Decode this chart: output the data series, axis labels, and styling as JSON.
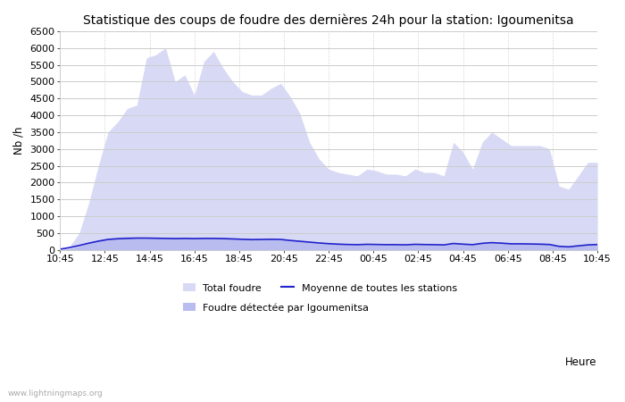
{
  "title": "Statistique des coups de foudre des dernières 24h pour la station: Igoumenitsa",
  "xlabel": "Heure",
  "ylabel": "Nb /h",
  "ylim": [
    0,
    6500
  ],
  "yticks": [
    0,
    500,
    1000,
    1500,
    2000,
    2500,
    3000,
    3500,
    4000,
    4500,
    5000,
    5500,
    6000,
    6500
  ],
  "xtick_labels": [
    "10:45",
    "12:45",
    "14:45",
    "16:45",
    "18:45",
    "20:45",
    "22:45",
    "00:45",
    "02:45",
    "04:45",
    "06:45",
    "08:45",
    "10:45"
  ],
  "bg_color": "#ffffff",
  "plot_bg_color": "#ffffff",
  "grid_color": "#cccccc",
  "fill_total_color": "#d8daf5",
  "fill_igoum_color": "#b8bcee",
  "line_color": "#2222cc",
  "watermark": "www.lightningmaps.org",
  "legend_total": "Total foudre",
  "legend_igoum": "Foudre détectée par Igoumenitsa",
  "legend_mean": "Moyenne de toutes les stations",
  "total_foudre": [
    0,
    100,
    500,
    1400,
    2500,
    3500,
    3800,
    4200,
    4300,
    5700,
    5800,
    6000,
    5000,
    5200,
    4600,
    5600,
    5900,
    5400,
    5000,
    4700,
    4600,
    4600,
    4800,
    4950,
    4550,
    4050,
    3200,
    2700,
    2400,
    2300,
    2250,
    2200,
    2400,
    2350,
    2250,
    2250,
    2200,
    2400,
    2300,
    2300,
    2200,
    3200,
    2900,
    2400,
    3200,
    3500,
    3300,
    3100,
    3100,
    3100,
    3100,
    3000,
    1900,
    1800,
    2200,
    2600,
    2600
  ],
  "igoum_foudre": [
    0,
    30,
    100,
    200,
    300,
    350,
    380,
    400,
    380,
    380,
    380,
    380,
    370,
    380,
    370,
    380,
    380,
    370,
    360,
    350,
    340,
    330,
    320,
    310,
    290,
    270,
    240,
    210,
    190,
    170,
    160,
    150,
    160,
    150,
    150,
    150,
    140,
    160,
    150,
    150,
    140,
    190,
    170,
    150,
    200,
    220,
    200,
    180,
    180,
    180,
    170,
    160,
    100,
    90,
    120,
    150,
    160
  ],
  "mean_line": [
    20,
    70,
    130,
    200,
    260,
    310,
    330,
    340,
    350,
    350,
    345,
    340,
    335,
    340,
    335,
    340,
    340,
    335,
    325,
    315,
    305,
    310,
    315,
    310,
    280,
    255,
    230,
    205,
    185,
    170,
    160,
    155,
    165,
    160,
    155,
    155,
    150,
    165,
    158,
    155,
    148,
    190,
    170,
    155,
    195,
    215,
    200,
    180,
    180,
    175,
    170,
    160,
    105,
    90,
    120,
    148,
    160
  ],
  "title_fontsize": 10,
  "tick_fontsize": 8,
  "label_fontsize": 8.5
}
